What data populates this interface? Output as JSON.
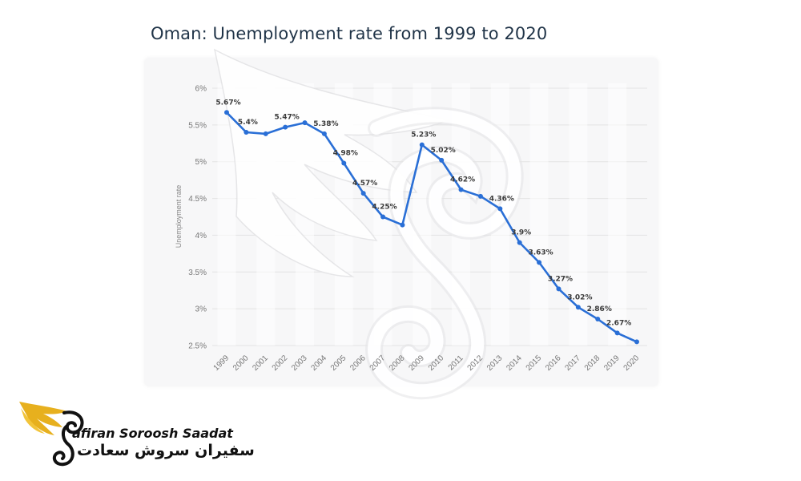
{
  "colors": {
    "line": "#2a6fd6",
    "title": "#1f3347",
    "gridline": "#e3e3e3",
    "watermark": "#ffffff",
    "logo_gold": "#e7b01e"
  },
  "logo": {
    "icon": "bird-wing-icon",
    "name_en": "afiran Soroosh Saadat",
    "name_fa": "سفیران سروش سعادت"
  },
  "chart_data": {
    "type": "line",
    "title": "Oman: Unemployment rate from 1999 to 2020",
    "xlabel": "",
    "ylabel": "Unemployment rate",
    "ylim": [
      2.5,
      6
    ],
    "yticks": [
      "2.5%",
      "3%",
      "3.5%",
      "4%",
      "4.5%",
      "5%",
      "5.5%",
      "6%"
    ],
    "ytick_values": [
      2.5,
      3,
      3.5,
      4,
      4.5,
      5,
      5.5,
      6
    ],
    "grid": true,
    "categories": [
      "1999",
      "2000",
      "2001",
      "2002",
      "2003",
      "2004",
      "2005",
      "2006",
      "2007",
      "2008",
      "2009",
      "2010",
      "2011",
      "2012",
      "2013",
      "2014",
      "2015",
      "2016",
      "2017",
      "2018",
      "2019",
      "2020"
    ],
    "series": [
      {
        "values": [
          5.67,
          5.4,
          5.38,
          5.47,
          5.53,
          5.38,
          4.98,
          4.57,
          4.25,
          4.14,
          5.23,
          5.02,
          4.62,
          4.53,
          4.36,
          3.9,
          3.63,
          3.27,
          3.02,
          2.86,
          2.67,
          2.55
        ],
        "labels": [
          "5.67%",
          "5.4%",
          "",
          "5.47%",
          "",
          "5.38%",
          "4.98%",
          "4.57%",
          "4.25%",
          "",
          "5.23%",
          "5.02%",
          "4.62%",
          "",
          "4.36%",
          "3.9%",
          "3.63%",
          "3.27%",
          "3.02%",
          "2.86%",
          "2.67%",
          ""
        ]
      }
    ]
  }
}
